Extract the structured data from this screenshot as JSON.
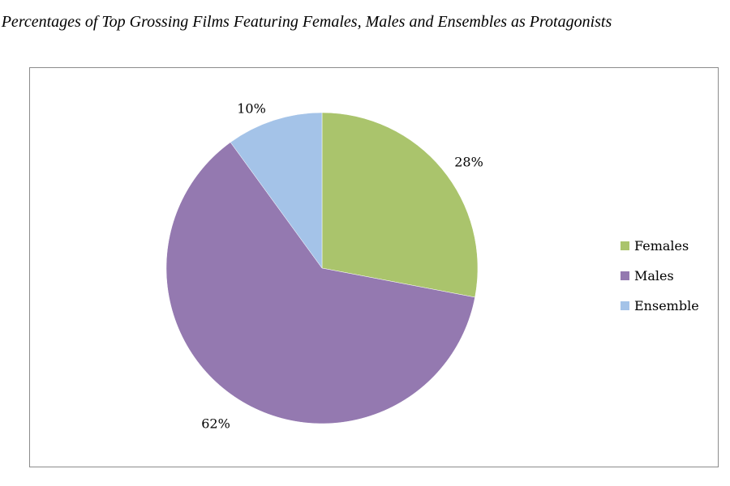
{
  "chart_data": {
    "type": "pie",
    "title": "Percentages of Top Grossing Films Featuring Females, Males and Ensembles as Protagonists",
    "categories": [
      "Females",
      "Males",
      "Ensemble"
    ],
    "values": [
      28,
      62,
      10
    ],
    "data_labels": [
      "28%",
      "62%",
      "10%"
    ],
    "colors": [
      "#aac46c",
      "#9479b0",
      "#a4c3e8"
    ],
    "start_angle": "12 o'clock",
    "direction": "clockwise",
    "legend_position": "right"
  }
}
